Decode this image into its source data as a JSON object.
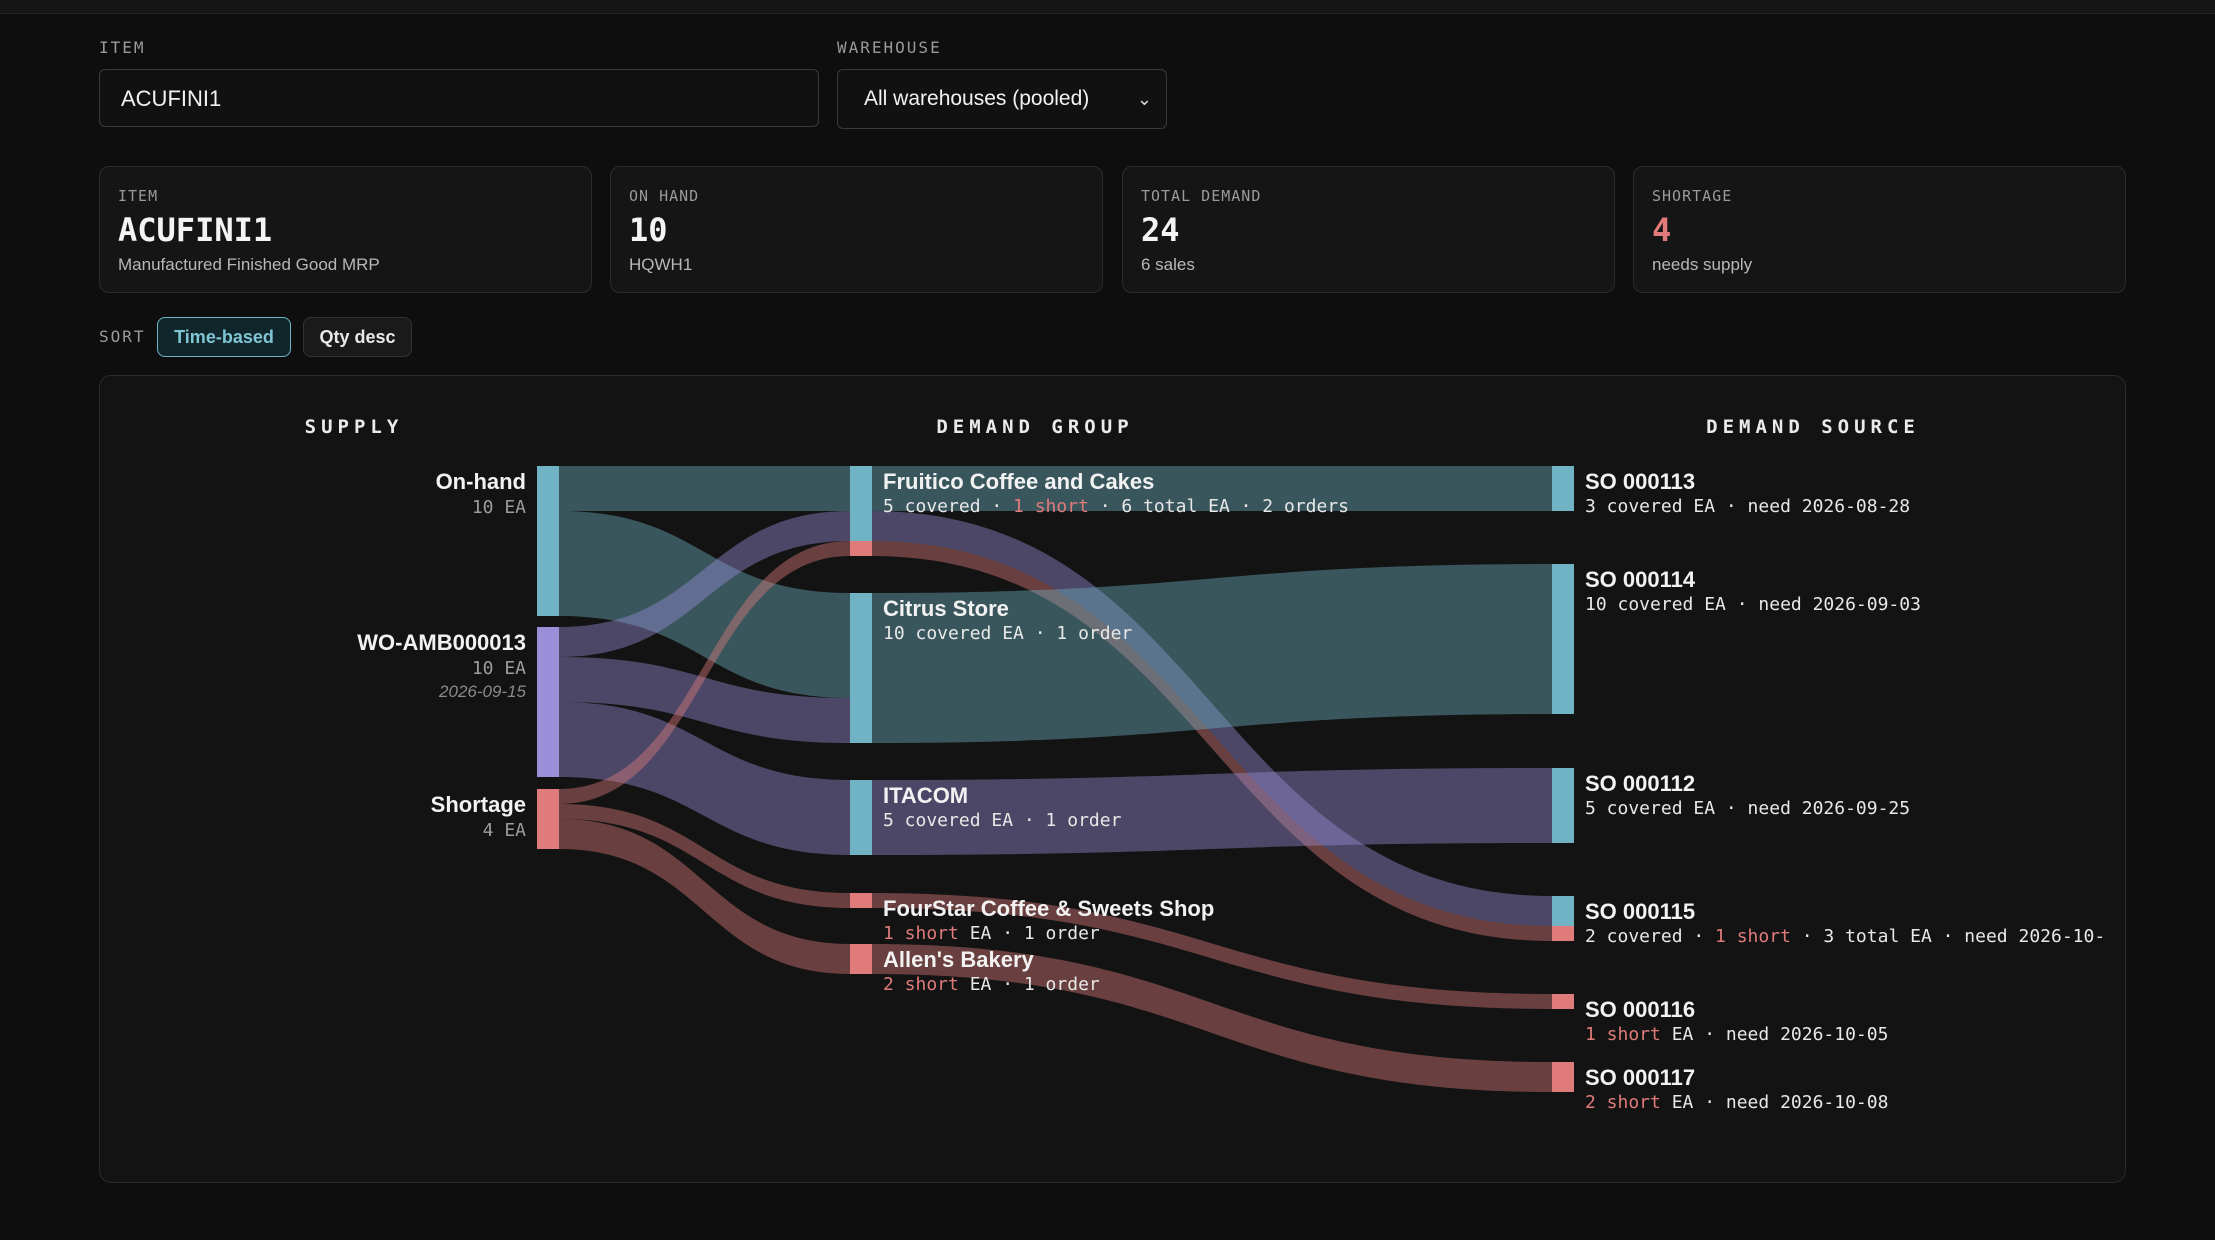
{
  "filters": {
    "item_label": "ITEM",
    "item_value": "ACUFINI1",
    "warehouse_label": "WAREHOUSE",
    "warehouse_value": "All warehouses (pooled)"
  },
  "cards": [
    {
      "key": "ITEM",
      "value": "ACUFINI1",
      "sub": "Manufactured Finished Good MRP"
    },
    {
      "key": "ON HAND",
      "value": "10",
      "sub": "HQWH1"
    },
    {
      "key": "TOTAL DEMAND",
      "value": "24",
      "sub": "6 sales"
    },
    {
      "key": "SHORTAGE",
      "value": "4",
      "sub": "needs supply"
    }
  ],
  "sort": {
    "label": "SORT",
    "options": [
      "Time-based",
      "Qty desc"
    ],
    "active": "Time-based"
  },
  "colors": {
    "teal": "#6fb3c4",
    "purple": "#9a8fd8",
    "red": "#e07b7b"
  },
  "sankey": {
    "columns": [
      "SUPPLY",
      "DEMAND GROUP",
      "DEMAND SOURCE"
    ],
    "supply": [
      {
        "name": "On-hand",
        "qty": "10 EA",
        "color": "teal"
      },
      {
        "name": "WO-AMB000013",
        "qty": "10 EA",
        "date": "2026-09-15",
        "color": "purple"
      },
      {
        "name": "Shortage",
        "qty": "4 EA",
        "color": "red"
      }
    ],
    "groups": [
      {
        "name": "Fruitico Coffee and Cakes",
        "parts": [
          [
            "5 covered · ",
            ""
          ],
          [
            "1 short",
            "short"
          ],
          [
            " · 6 total EA · 2 orders",
            ""
          ]
        ]
      },
      {
        "name": "Citrus Store",
        "parts": [
          [
            "10 covered EA · 1 order",
            ""
          ]
        ]
      },
      {
        "name": "ITACOM",
        "parts": [
          [
            "5 covered EA · 1 order",
            ""
          ]
        ]
      },
      {
        "name": "FourStar Coffee & Sweets Shop",
        "parts": [
          [
            "1 short",
            "short"
          ],
          [
            " EA · 1 order",
            ""
          ]
        ]
      },
      {
        "name": "Allen's Bakery",
        "parts": [
          [
            "2 short",
            "short"
          ],
          [
            " EA · 1 order",
            ""
          ]
        ]
      }
    ],
    "sources": [
      {
        "name": "SO 000113",
        "parts": [
          [
            "3 covered EA · need 2026-08-28",
            ""
          ]
        ]
      },
      {
        "name": "SO 000114",
        "parts": [
          [
            "10 covered EA · need 2026-09-03",
            ""
          ]
        ]
      },
      {
        "name": "SO 000112",
        "parts": [
          [
            "5 covered EA · need 2026-09-25",
            ""
          ]
        ]
      },
      {
        "name": "SO 000115",
        "parts": [
          [
            "2 covered · ",
            ""
          ],
          [
            "1 short",
            "short"
          ],
          [
            " · 3 total EA · need 2026-10-",
            ""
          ]
        ]
      },
      {
        "name": "SO 000116",
        "parts": [
          [
            "1 short",
            "short"
          ],
          [
            " EA · need 2026-10-05",
            ""
          ]
        ]
      },
      {
        "name": "SO 000117",
        "parts": [
          [
            "2 short",
            "short"
          ],
          [
            " EA · need 2026-10-08",
            ""
          ]
        ]
      }
    ],
    "flows": [
      {
        "from": "On-hand",
        "to": "Fruitico Coffee and Cakes",
        "qty": 3,
        "color": "teal"
      },
      {
        "from": "On-hand",
        "to": "Citrus Store",
        "qty": 7,
        "color": "teal"
      },
      {
        "from": "WO-AMB000013",
        "to": "Fruitico Coffee and Cakes",
        "qty": 2,
        "color": "purple"
      },
      {
        "from": "WO-AMB000013",
        "to": "Citrus Store",
        "qty": 3,
        "color": "purple"
      },
      {
        "from": "WO-AMB000013",
        "to": "ITACOM",
        "qty": 5,
        "color": "purple"
      },
      {
        "from": "Shortage",
        "to": "Fruitico Coffee and Cakes",
        "qty": 1,
        "color": "red"
      },
      {
        "from": "Shortage",
        "to": "FourStar Coffee & Sweets Shop",
        "qty": 1,
        "color": "red"
      },
      {
        "from": "Shortage",
        "to": "Allen's Bakery",
        "qty": 2,
        "color": "red"
      },
      {
        "from": "Fruitico Coffee and Cakes",
        "to": "SO 000113",
        "qty": 3,
        "color": "teal"
      },
      {
        "from": "Fruitico Coffee and Cakes",
        "to": "SO 000115",
        "qty": 2,
        "color": "purple"
      },
      {
        "from": "Fruitico Coffee and Cakes",
        "to": "SO 000115",
        "qty": 1,
        "color": "red"
      },
      {
        "from": "Citrus Store",
        "to": "SO 000114",
        "qty": 10,
        "color": "teal"
      },
      {
        "from": "ITACOM",
        "to": "SO 000112",
        "qty": 5,
        "color": "purple"
      },
      {
        "from": "FourStar Coffee & Sweets Shop",
        "to": "SO 000116",
        "qty": 1,
        "color": "red"
      },
      {
        "from": "Allen's Bakery",
        "to": "SO 000117",
        "qty": 2,
        "color": "red"
      }
    ]
  }
}
